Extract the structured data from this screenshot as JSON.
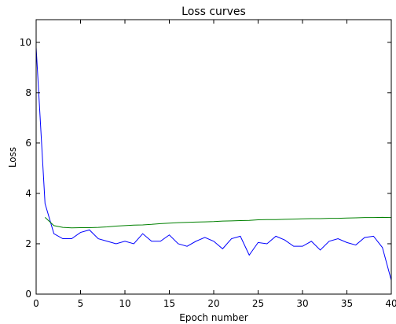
{
  "chart_data": {
    "type": "line",
    "title": "Loss curves",
    "xlabel": "Epoch number",
    "ylabel": "Loss",
    "xlim": [
      0,
      40
    ],
    "ylim": [
      0,
      10.9
    ],
    "xticks": [
      0,
      5,
      10,
      15,
      20,
      25,
      30,
      35,
      40
    ],
    "yticks": [
      0,
      2,
      4,
      6,
      8,
      10
    ],
    "grid": false,
    "series": [
      {
        "color": "#0000ff",
        "x": [
          0,
          1,
          2,
          3,
          4,
          5,
          6,
          7,
          8,
          9,
          10,
          11,
          12,
          13,
          14,
          15,
          16,
          17,
          18,
          19,
          20,
          21,
          22,
          23,
          24,
          25,
          26,
          27,
          28,
          29,
          30,
          31,
          32,
          33,
          34,
          35,
          36,
          37,
          38,
          39,
          40
        ],
        "y": [
          9.8,
          3.6,
          2.4,
          2.2,
          2.2,
          2.45,
          2.55,
          2.2,
          2.1,
          2.0,
          2.1,
          2.0,
          2.4,
          2.1,
          2.1,
          2.35,
          2.0,
          1.9,
          2.1,
          2.25,
          2.1,
          1.8,
          2.2,
          2.3,
          1.55,
          2.05,
          2.0,
          2.3,
          2.15,
          1.9,
          1.9,
          2.1,
          1.75,
          2.1,
          2.2,
          2.05,
          1.95,
          2.25,
          2.3,
          1.85,
          0.55
        ]
      },
      {
        "color": "#008000",
        "x": [
          1,
          2,
          3,
          4,
          5,
          6,
          7,
          8,
          9,
          10,
          11,
          12,
          13,
          14,
          15,
          16,
          17,
          18,
          19,
          20,
          21,
          22,
          23,
          24,
          25,
          26,
          27,
          28,
          29,
          30,
          31,
          32,
          33,
          34,
          35,
          36,
          37,
          38,
          39,
          40
        ],
        "y": [
          3.05,
          2.72,
          2.65,
          2.63,
          2.64,
          2.64,
          2.65,
          2.67,
          2.7,
          2.72,
          2.74,
          2.75,
          2.77,
          2.8,
          2.82,
          2.84,
          2.85,
          2.86,
          2.87,
          2.88,
          2.9,
          2.91,
          2.92,
          2.93,
          2.95,
          2.96,
          2.96,
          2.97,
          2.98,
          2.99,
          3.0,
          3.0,
          3.01,
          3.01,
          3.02,
          3.03,
          3.04,
          3.04,
          3.05,
          3.04
        ]
      }
    ]
  }
}
